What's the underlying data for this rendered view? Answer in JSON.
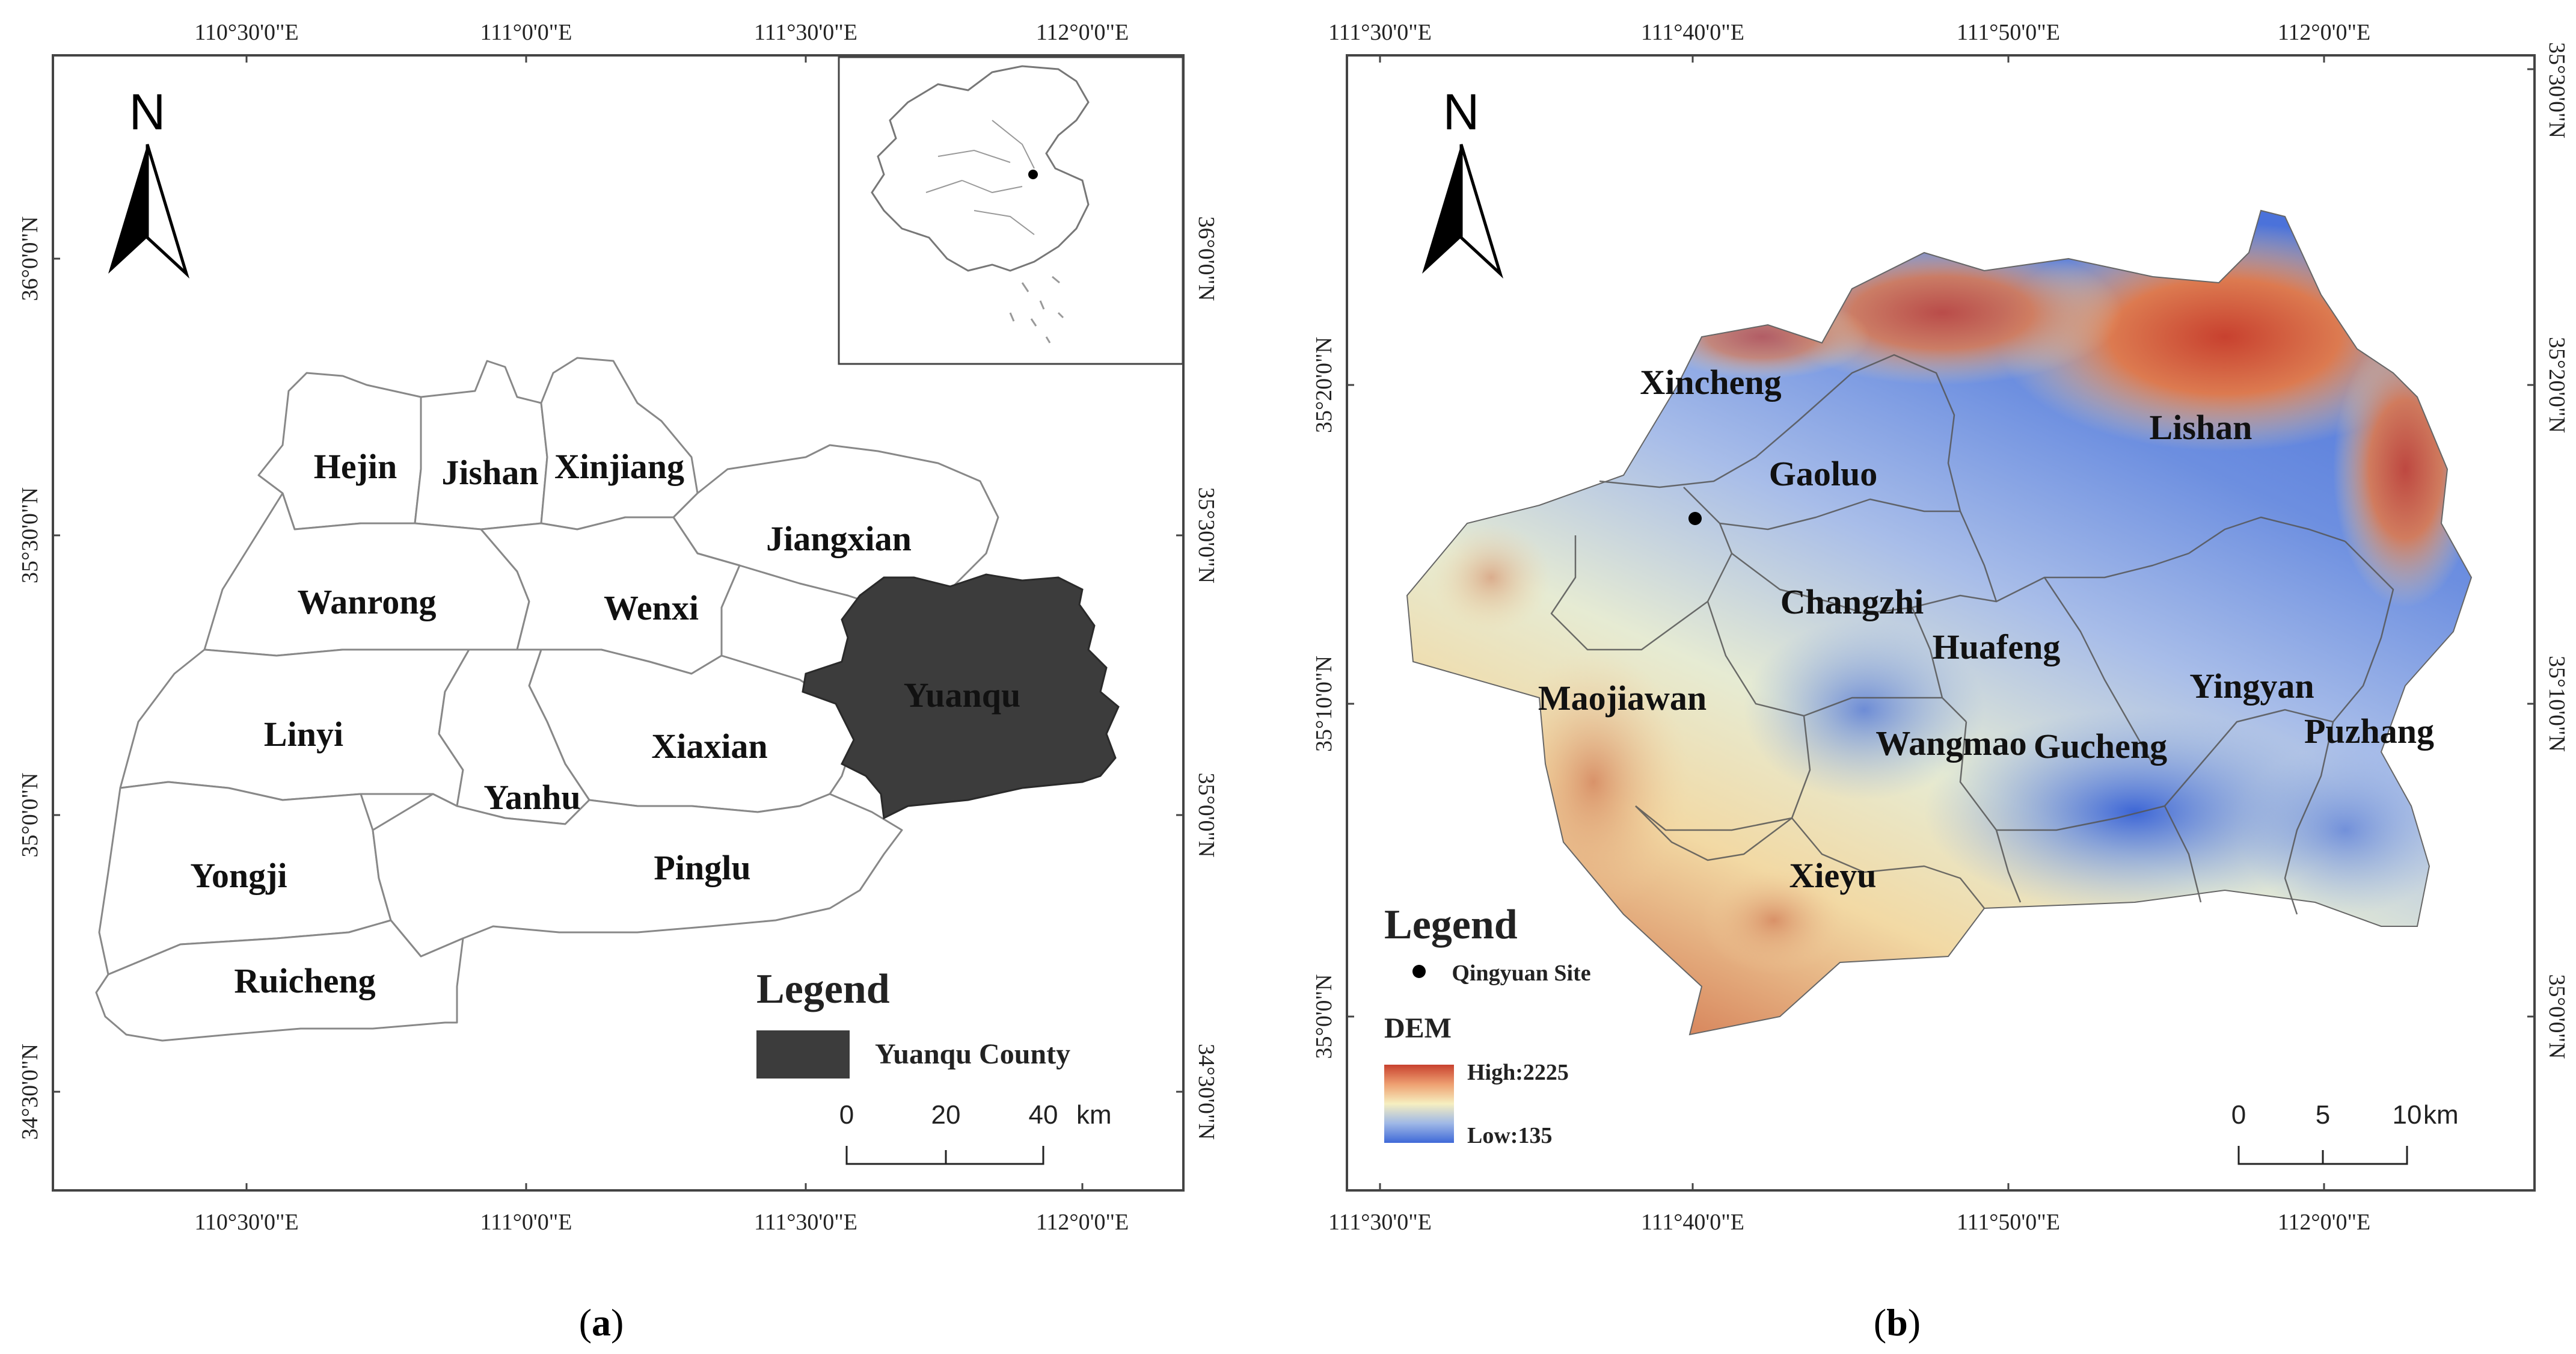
{
  "panel_a": {
    "top_ticks": [
      "110°30'0\"E",
      "111°0'0\"E",
      "111°30'0\"E",
      "112°0'0\"E"
    ],
    "bottom_ticks": [
      "110°30'0\"E",
      "111°0'0\"E",
      "111°30'0\"E",
      "112°0'0\"E"
    ],
    "left_ticks": [
      "36°0'0\"N",
      "35°30'0\"N",
      "35°0'0\"N",
      "34°30'0\"N"
    ],
    "right_ticks": [
      "36°0'0\"N",
      "35°30'0\"N",
      "35°0'0\"N",
      "34°30'0\"N"
    ],
    "north_label": "N",
    "places": [
      "Hejin",
      "Jishan",
      "Xinjiang",
      "Jiangxian",
      "Wanrong",
      "Wenxi",
      "Yuanqu",
      "Linyi",
      "Xiaxian",
      "Yanhu",
      "Yongji",
      "Pinglu",
      "Ruicheng"
    ],
    "legend": {
      "title": "Legend",
      "item": "Yuanqu County"
    },
    "scale": {
      "labels": [
        "0",
        "20",
        "40"
      ],
      "unit": "km"
    },
    "caption_open": "(",
    "caption_letter": "a",
    "caption_close": ")"
  },
  "panel_b": {
    "top_ticks": [
      "111°30'0\"E",
      "111°40'0\"E",
      "111°50'0\"E",
      "112°0'0\"E"
    ],
    "bottom_ticks": [
      "111°30'0\"E",
      "111°40'0\"E",
      "111°50'0\"E",
      "112°0'0\"E"
    ],
    "left_ticks": [
      "35°20'0\"N",
      "35°10'0\"N",
      "35°0'0\"N"
    ],
    "right_ticks": [
      "35°30'0\"N",
      "35°20'0\"N",
      "35°10'0\"N",
      "35°0'0\"N"
    ],
    "north_label": "N",
    "places": [
      "Xincheng",
      "Gaoluo",
      "Lishan",
      "Changzhi",
      "Huafeng",
      "Maojiawan",
      "Yingyan",
      "Puzhang",
      "Wangmao",
      "Gucheng",
      "Xieyu"
    ],
    "legend": {
      "title": "Legend",
      "site": "Qingyuan Site",
      "dem_title": "DEM",
      "high": "High:2225",
      "low": "Low:135"
    },
    "scale": {
      "labels": [
        "0",
        "5",
        "10"
      ],
      "unit": "km"
    },
    "caption_open": "(",
    "caption_letter": "b",
    "caption_close": ")"
  },
  "colors": {
    "yuanqu_fill": "#3c3c3c",
    "dem_high": "#c8412f",
    "dem_mid": "#f6efc0",
    "dem_low": "#3f69d8"
  }
}
